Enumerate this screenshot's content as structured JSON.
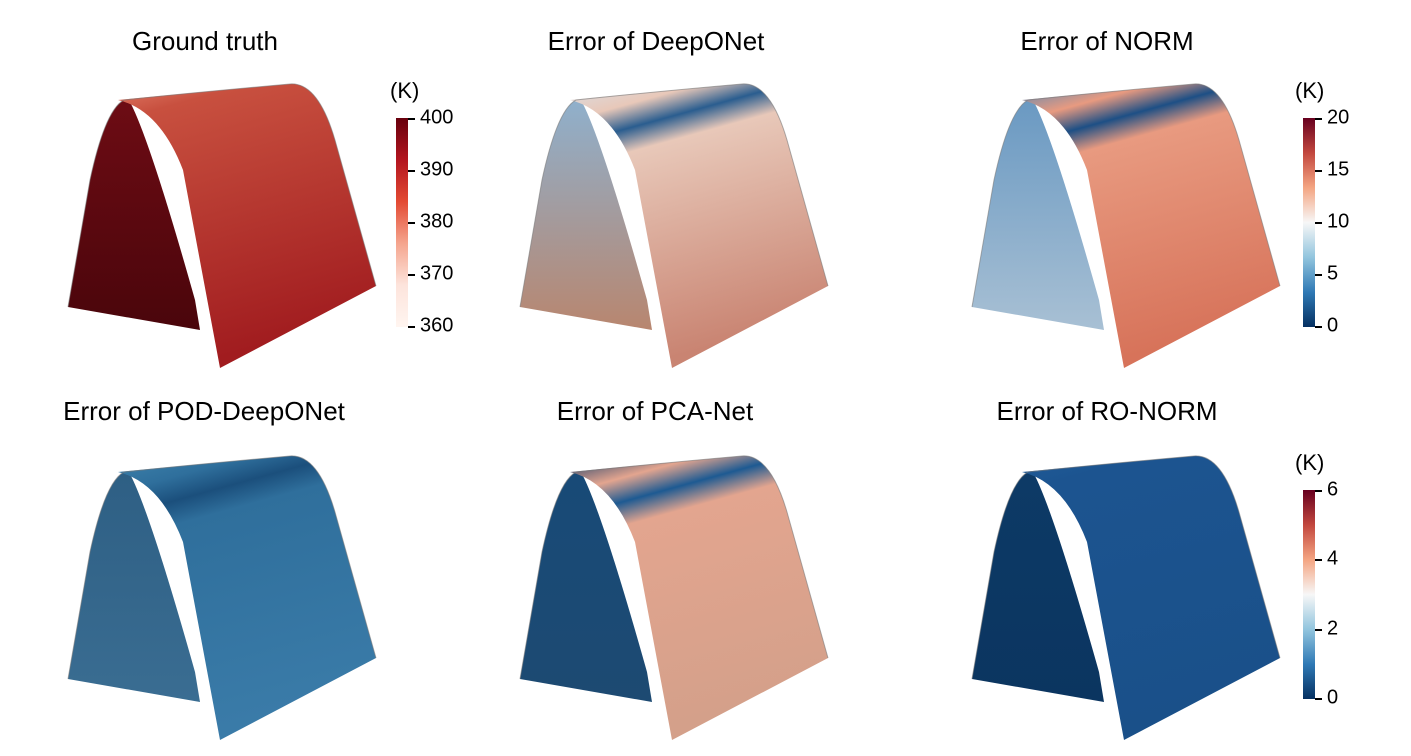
{
  "panels": [
    {
      "title": "Ground truth",
      "front": {
        "top": "#c8503f",
        "ridge": "#e07a65",
        "bottom": "#a11c1f",
        "band": null
      },
      "back": {
        "top": "#6d0c14",
        "bottom": "#4a050b"
      }
    },
    {
      "title": "Error of DeepONet",
      "front": {
        "top": "#e8c8b9",
        "ridge": "#d9dfe6",
        "bottom": "#c98472",
        "band": "#2a5d8f"
      },
      "back": {
        "top": "#8fb0cc",
        "bottom": "#b8866f"
      }
    },
    {
      "title": "Error of NORM",
      "front": {
        "top": "#e89a80",
        "ridge": "#4c86b8",
        "bottom": "#d7735a",
        "band": "#1d4f85"
      },
      "back": {
        "top": "#6a99c2",
        "bottom": "#a8c0d4"
      }
    },
    {
      "title": "Error of POD-DeepONet",
      "front": {
        "top": "#2f6f9c",
        "ridge": "#3d82ac",
        "bottom": "#3a7ba8",
        "band": "#1b4f7c"
      },
      "back": {
        "top": "#2e5f84",
        "bottom": "#3a6d92"
      }
    },
    {
      "title": "Error of PCA-Net",
      "front": {
        "top": "#e3a58f",
        "ridge": "#0a3565",
        "bottom": "#d4a08a",
        "band": "#1d5a92"
      },
      "back": {
        "top": "#184a77",
        "bottom": "#1d4a72"
      }
    },
    {
      "title": "Error of RO-NORM",
      "front": {
        "top": "#1c5490",
        "ridge": "#1f5b98",
        "bottom": "#1a5089",
        "band": null
      },
      "back": {
        "top": "#0d3a66",
        "bottom": "#0b3560"
      }
    }
  ],
  "colorbars": [
    {
      "unit": "(K)",
      "ticks": [
        "400",
        "390",
        "380",
        "370",
        "360"
      ],
      "scheme": "reds"
    },
    {
      "unit": "(K)",
      "ticks": [
        "20",
        "15",
        "10",
        "5",
        "0"
      ],
      "scheme": "rdbu"
    },
    {
      "unit": "(K)",
      "ticks": [
        "6",
        "4",
        "2",
        "0"
      ],
      "scheme": "rdbu"
    }
  ]
}
